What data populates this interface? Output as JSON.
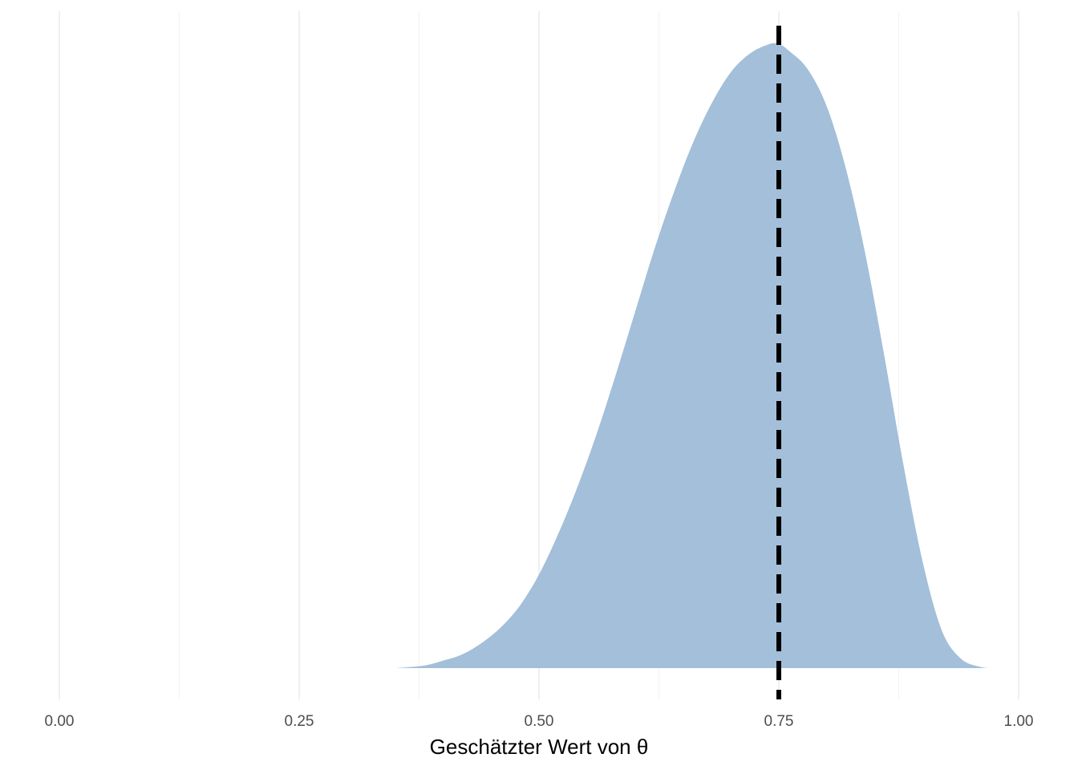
{
  "chart_data": {
    "type": "area",
    "title": "",
    "xlabel": "Geschätzter Wert von θ",
    "ylabel": "",
    "xlim": [
      0,
      1
    ],
    "x_ticks": [
      0,
      0.25,
      0.5,
      0.75,
      1
    ],
    "x_tick_labels": [
      "0.00",
      "0.25",
      "0.50",
      "0.75",
      "1.00"
    ],
    "x_minor_ticks": [
      0.125,
      0.375,
      0.625,
      0.875
    ],
    "y_axis_shown": false,
    "grid": "vertical-only",
    "legend": "none",
    "series": [
      {
        "x": [
          0.35,
          0.38,
          0.4,
          0.42,
          0.44,
          0.46,
          0.48,
          0.5,
          0.52,
          0.54,
          0.56,
          0.58,
          0.6,
          0.62,
          0.64,
          0.66,
          0.68,
          0.7,
          0.72,
          0.74,
          0.75,
          0.76,
          0.78,
          0.8,
          0.82,
          0.84,
          0.86,
          0.88,
          0.9,
          0.92,
          0.94,
          0.96,
          0.97
        ],
        "y": [
          0.0,
          0.004,
          0.012,
          0.022,
          0.04,
          0.065,
          0.1,
          0.15,
          0.215,
          0.29,
          0.375,
          0.47,
          0.57,
          0.67,
          0.76,
          0.84,
          0.905,
          0.955,
          0.985,
          1.0,
          1.0,
          0.99,
          0.96,
          0.9,
          0.8,
          0.665,
          0.5,
          0.325,
          0.17,
          0.06,
          0.015,
          0.002,
          0.0
        ]
      }
    ],
    "fill_color": "#a3bfd9",
    "reference_line": {
      "x": 0.75,
      "style": "dashed",
      "color": "#000000"
    }
  }
}
